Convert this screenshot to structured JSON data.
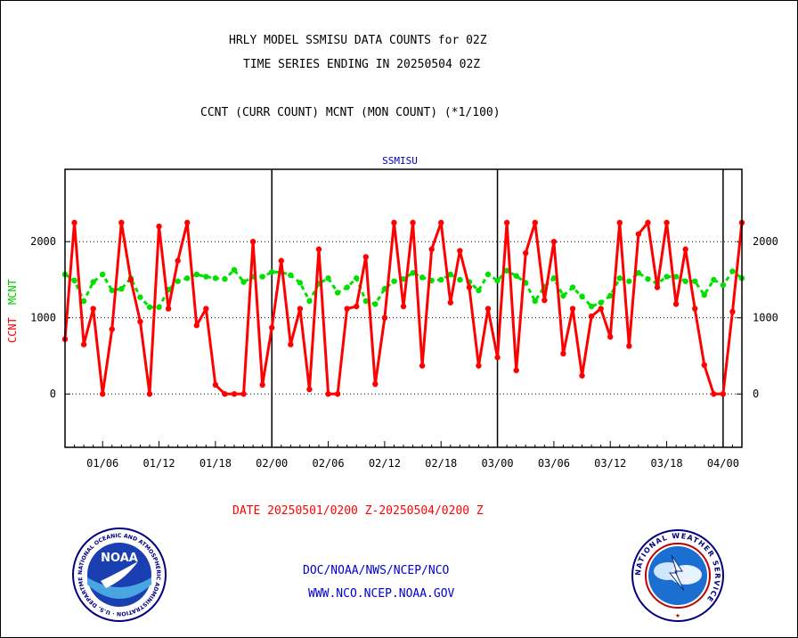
{
  "header": {
    "title_line1": "HRLY MODEL SSMISU DATA COUNTS for 02Z",
    "title_line2": "TIME SERIES ENDING IN 20250504 02Z",
    "subtitle": "CCNT (CURR COUNT) MCNT (MON COUNT) (*1/100)"
  },
  "footer": {
    "date_range": "DATE 20250501/0200 Z-20250504/0200 Z",
    "org": "DOC/NOAA/NWS/NCEP/NCO",
    "url": "WWW.NCO.NCEP.NOAA.GOV"
  },
  "logos": {
    "left_text": "NOAA",
    "left_ring": "NATIONAL OCEANIC AND ATMOSPHERIC ADMINISTRATION · U.S. DEPARTMENT OF COMMERCE",
    "right_ring": "NATIONAL WEATHER SERVICE"
  },
  "colors": {
    "ccnt": "#ff0000",
    "mcnt": "#00e000",
    "title": "#000000",
    "footer_red": "#ff0000",
    "footer_blue": "#0000cc",
    "plot_title": "#0000cc"
  },
  "chart_data": {
    "type": "line",
    "title": "SSMISU",
    "ylabel_ccnt": "CCNT",
    "ylabel_mcnt": "MCNT",
    "x_tick_labels": [
      "01/06",
      "01/12",
      "01/18",
      "02/00",
      "02/06",
      "02/12",
      "02/18",
      "03/00",
      "03/06",
      "03/12",
      "03/18",
      "04/00"
    ],
    "x_ticks": [
      4,
      10,
      16,
      22,
      28,
      34,
      40,
      46,
      52,
      58,
      64,
      70
    ],
    "day_boundaries": [
      22,
      46,
      70
    ],
    "xlim": [
      0,
      72
    ],
    "ylim": [
      -700,
      2950
    ],
    "y_ticks": [
      0,
      1000,
      2000
    ],
    "y_tick_labels": [
      "0",
      "1000",
      "2000"
    ],
    "grid_y": [
      0,
      1000,
      2000
    ],
    "series": [
      {
        "name": "CCNT",
        "values": [
          720,
          2250,
          650,
          1120,
          0,
          850,
          2250,
          1500,
          950,
          0,
          2200,
          1120,
          1750,
          2250,
          900,
          1120,
          120,
          0,
          0,
          0,
          2000,
          120,
          870,
          1750,
          650,
          1120,
          60,
          1900,
          0,
          0,
          1120,
          1150,
          1800,
          130,
          1000,
          2250,
          1150,
          2250,
          370,
          1900,
          2250,
          1200,
          1880,
          1400,
          370,
          1120,
          480,
          2250,
          310,
          1850,
          2250,
          1230,
          2000,
          530,
          1120,
          240,
          1020,
          1120,
          750,
          2250,
          630,
          2100,
          2250,
          1400,
          2250,
          1180,
          1900,
          1120,
          380,
          0,
          0,
          1080,
          2250
        ]
      },
      {
        "name": "MCNT",
        "values": [
          1570,
          1490,
          1220,
          1470,
          1570,
          1360,
          1380,
          1520,
          1270,
          1140,
          1140,
          1370,
          1480,
          1520,
          1570,
          1540,
          1520,
          1510,
          1630,
          1470,
          1540,
          1540,
          1600,
          1600,
          1560,
          1460,
          1220,
          1450,
          1520,
          1330,
          1400,
          1520,
          1220,
          1180,
          1380,
          1480,
          1510,
          1590,
          1530,
          1490,
          1500,
          1570,
          1500,
          1470,
          1360,
          1570,
          1490,
          1620,
          1550,
          1460,
          1220,
          1410,
          1520,
          1290,
          1400,
          1280,
          1150,
          1200,
          1290,
          1520,
          1480,
          1590,
          1510,
          1450,
          1540,
          1540,
          1480,
          1480,
          1300,
          1500,
          1430,
          1610,
          1520
        ]
      }
    ],
    "grid": true,
    "legend": "none"
  }
}
